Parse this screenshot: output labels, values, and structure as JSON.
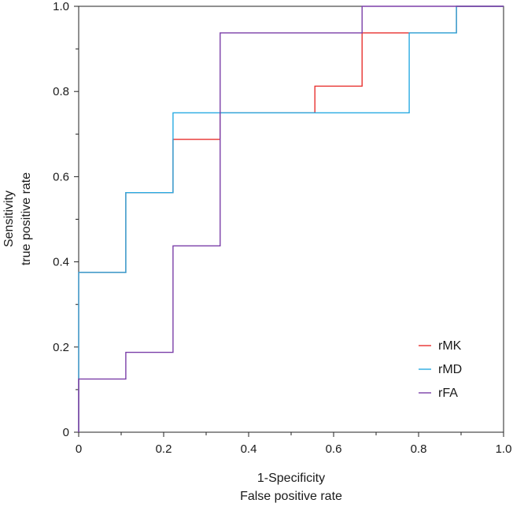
{
  "chart_data": {
    "type": "line",
    "step": true,
    "title": "",
    "xlabel": [
      "1-Specificity",
      "False positive rate"
    ],
    "ylabel": [
      "Sensitivity",
      "true positive rate"
    ],
    "xlim": [
      0,
      1
    ],
    "ylim": [
      0,
      1
    ],
    "xticks": [
      0,
      0.2,
      0.4,
      0.6,
      0.8,
      1.0
    ],
    "xtick_labels": [
      "0",
      "0.2",
      "0.4",
      "0.6",
      "0.8",
      "1.0"
    ],
    "yticks": [
      0,
      0.2,
      0.4,
      0.6,
      0.8,
      1.0
    ],
    "ytick_labels": [
      "0",
      "0.2",
      "0.4",
      "0.6",
      "0.8",
      "1.0"
    ],
    "grid": false,
    "legend_position": "bottom-right",
    "series": [
      {
        "name": "rMK",
        "color": "#e8312f",
        "points": [
          [
            0,
            0
          ],
          [
            0,
            0.375
          ],
          [
            0.111,
            0.375
          ],
          [
            0.111,
            0.5625
          ],
          [
            0.222,
            0.5625
          ],
          [
            0.222,
            0.6875
          ],
          [
            0.333,
            0.6875
          ],
          [
            0.333,
            0.75
          ],
          [
            0.556,
            0.75
          ],
          [
            0.556,
            0.8125
          ],
          [
            0.667,
            0.8125
          ],
          [
            0.667,
            0.9375
          ],
          [
            0.889,
            0.9375
          ],
          [
            0.889,
            1.0
          ],
          [
            1.0,
            1.0
          ]
        ]
      },
      {
        "name": "rMD",
        "color": "#29abe2",
        "points": [
          [
            0,
            0
          ],
          [
            0,
            0.375
          ],
          [
            0.111,
            0.375
          ],
          [
            0.111,
            0.5625
          ],
          [
            0.222,
            0.5625
          ],
          [
            0.222,
            0.75
          ],
          [
            0.778,
            0.75
          ],
          [
            0.778,
            0.9375
          ],
          [
            0.889,
            0.9375
          ],
          [
            0.889,
            1.0
          ],
          [
            1.0,
            1.0
          ]
        ]
      },
      {
        "name": "rFA",
        "color": "#7b3fa8",
        "points": [
          [
            0,
            0
          ],
          [
            0,
            0.125
          ],
          [
            0.111,
            0.125
          ],
          [
            0.111,
            0.1875
          ],
          [
            0.222,
            0.1875
          ],
          [
            0.222,
            0.4375
          ],
          [
            0.333,
            0.4375
          ],
          [
            0.333,
            0.9375
          ],
          [
            0.667,
            0.9375
          ],
          [
            0.667,
            1.0
          ],
          [
            1.0,
            1.0
          ]
        ]
      }
    ]
  }
}
